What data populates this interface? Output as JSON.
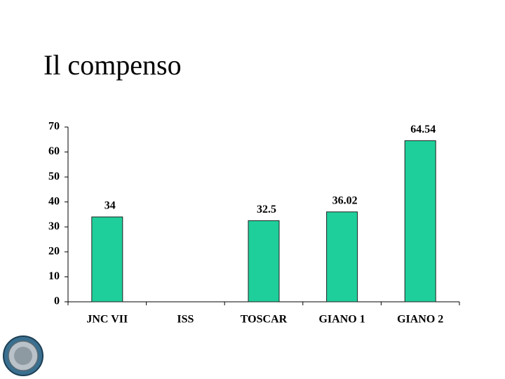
{
  "chart_data": {
    "type": "bar",
    "title": "Il compenso",
    "categories": [
      "JNC VII",
      "ISS",
      "TOSCAR",
      "GIANO 1",
      "GIANO 2"
    ],
    "values": [
      34,
      null,
      32.5,
      36.02,
      64.54
    ],
    "color": "#1fcf9b",
    "ylim": [
      0,
      70
    ],
    "yticks": [
      0,
      10,
      20,
      30,
      40,
      50,
      60,
      70
    ],
    "grid": false
  }
}
